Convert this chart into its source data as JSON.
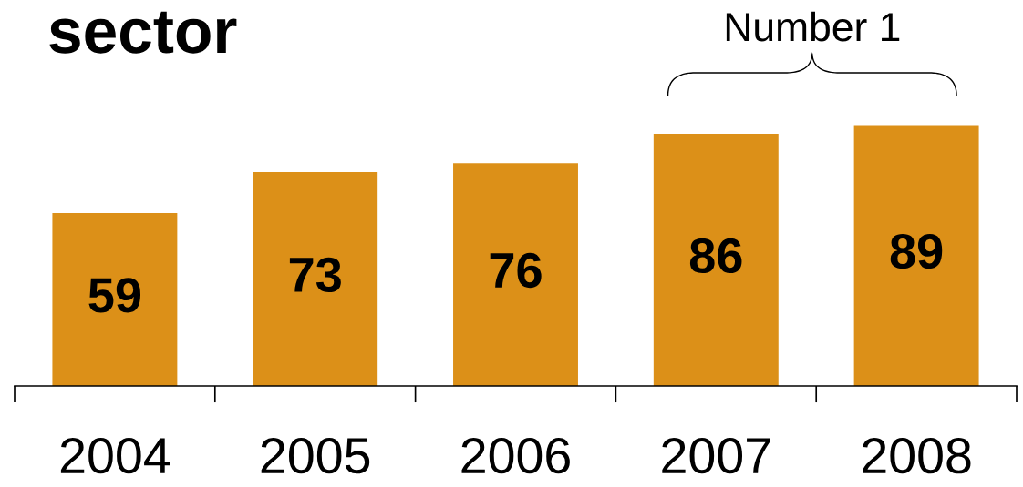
{
  "chart_data": {
    "type": "bar",
    "title": "sector",
    "categories": [
      "2004",
      "2005",
      "2006",
      "2007",
      "2008"
    ],
    "values": [
      59,
      73,
      76,
      86,
      89
    ],
    "color": "#dc9018",
    "data_labels": true,
    "annotations": [
      "Number 1"
    ]
  }
}
